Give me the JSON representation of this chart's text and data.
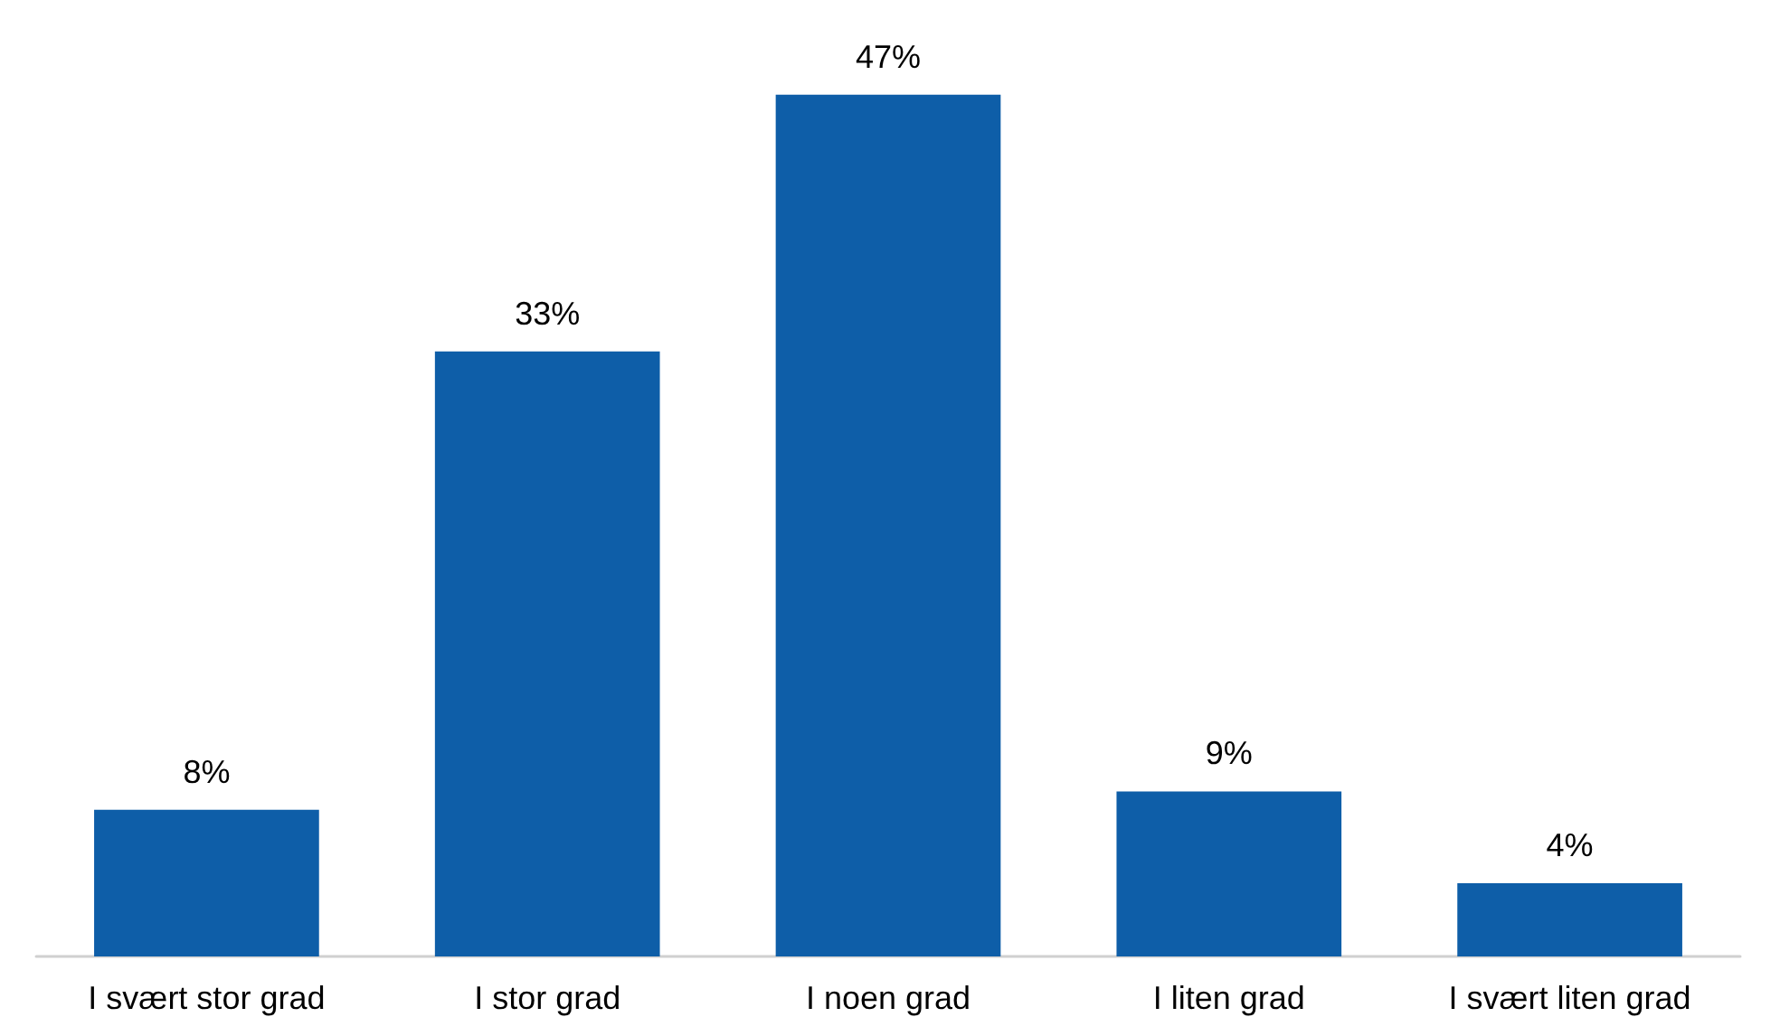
{
  "chart_data": {
    "type": "bar",
    "categories": [
      "I svært stor grad",
      "I stor grad",
      "I noen grad",
      "I liten grad",
      "I svært liten grad"
    ],
    "values": [
      8,
      33,
      47,
      9,
      4
    ],
    "value_labels": [
      "8%",
      "33%",
      "47%",
      "9%",
      "4%"
    ],
    "color": "#0e5ea8"
  }
}
